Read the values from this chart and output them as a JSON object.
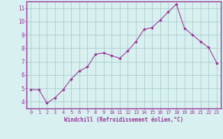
{
  "x_values": [
    0,
    1,
    2,
    3,
    4,
    5,
    6,
    7,
    8,
    9,
    10,
    11,
    12,
    13,
    14,
    15,
    16,
    17,
    18,
    19,
    20,
    21,
    22,
    23
  ],
  "y_values": [
    4.9,
    4.9,
    3.9,
    4.3,
    4.9,
    5.7,
    6.3,
    6.6,
    7.55,
    7.65,
    7.45,
    7.25,
    7.8,
    8.5,
    9.4,
    9.55,
    10.1,
    10.7,
    11.3,
    9.5,
    9.0,
    8.5,
    8.05,
    6.9
  ],
  "line_color": "#993399",
  "marker_color": "#993399",
  "bg_color": "#d8f0f0",
  "grid_color": "#aacccc",
  "axis_color": "#993399",
  "xlabel": "Windchill (Refroidissement éolien,°C)",
  "ylim": [
    3.5,
    11.5
  ],
  "xlim": [
    -0.5,
    23.5
  ],
  "yticks": [
    4,
    5,
    6,
    7,
    8,
    9,
    10,
    11
  ],
  "xticks": [
    0,
    1,
    2,
    3,
    4,
    5,
    6,
    7,
    8,
    9,
    10,
    11,
    12,
    13,
    14,
    15,
    16,
    17,
    18,
    19,
    20,
    21,
    22,
    23
  ],
  "font_color": "#993399",
  "tick_fontsize": 5.0,
  "xlabel_fontsize": 5.5
}
